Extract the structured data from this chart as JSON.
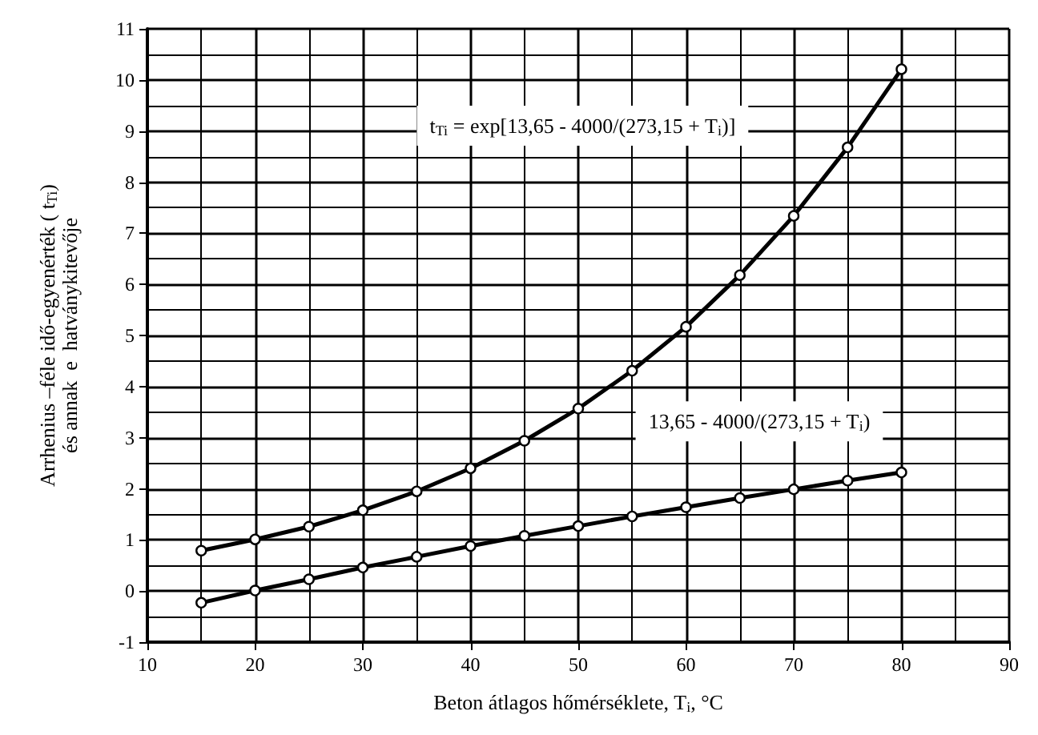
{
  "chart_data": {
    "type": "line",
    "xlabel": "Beton átlagos hőmérséklete, T$_{i}$, °C",
    "ylabel": "Arrhenius –féle idő-egyenérték ( t$_{Ti}$)\nés annak  e  hatványkitevője",
    "x": [
      15,
      20,
      25,
      30,
      35,
      40,
      45,
      50,
      55,
      60,
      65,
      70,
      75,
      80
    ],
    "series": [
      {
        "color": "#000000",
        "values": [
          0.79,
          1.01,
          1.26,
          1.58,
          1.95,
          2.4,
          2.94,
          3.57,
          4.31,
          5.17,
          6.18,
          7.34,
          8.68,
          10.21
        ]
      },
      {
        "color": "#000000",
        "values": [
          -0.23,
          0.01,
          0.23,
          0.46,
          0.67,
          0.88,
          1.08,
          1.27,
          1.46,
          1.64,
          1.82,
          1.99,
          2.16,
          2.32
        ]
      }
    ],
    "annotations": [
      "t$_{Ti}$ = exp[13,65 - 4000/(273,15 + T$_{i}$)]",
      "13,65 - 4000/(273,15 + T$_{i}$)"
    ],
    "xlim": [
      10,
      90
    ],
    "xticks": [
      10,
      20,
      30,
      40,
      50,
      60,
      70,
      80,
      90
    ],
    "ylim": [
      -1,
      11
    ],
    "yticks": [
      -1,
      0,
      1,
      2,
      3,
      4,
      5,
      6,
      7,
      8,
      9,
      10,
      11
    ],
    "grid": true,
    "marker": "circle",
    "line_style": "solid"
  }
}
